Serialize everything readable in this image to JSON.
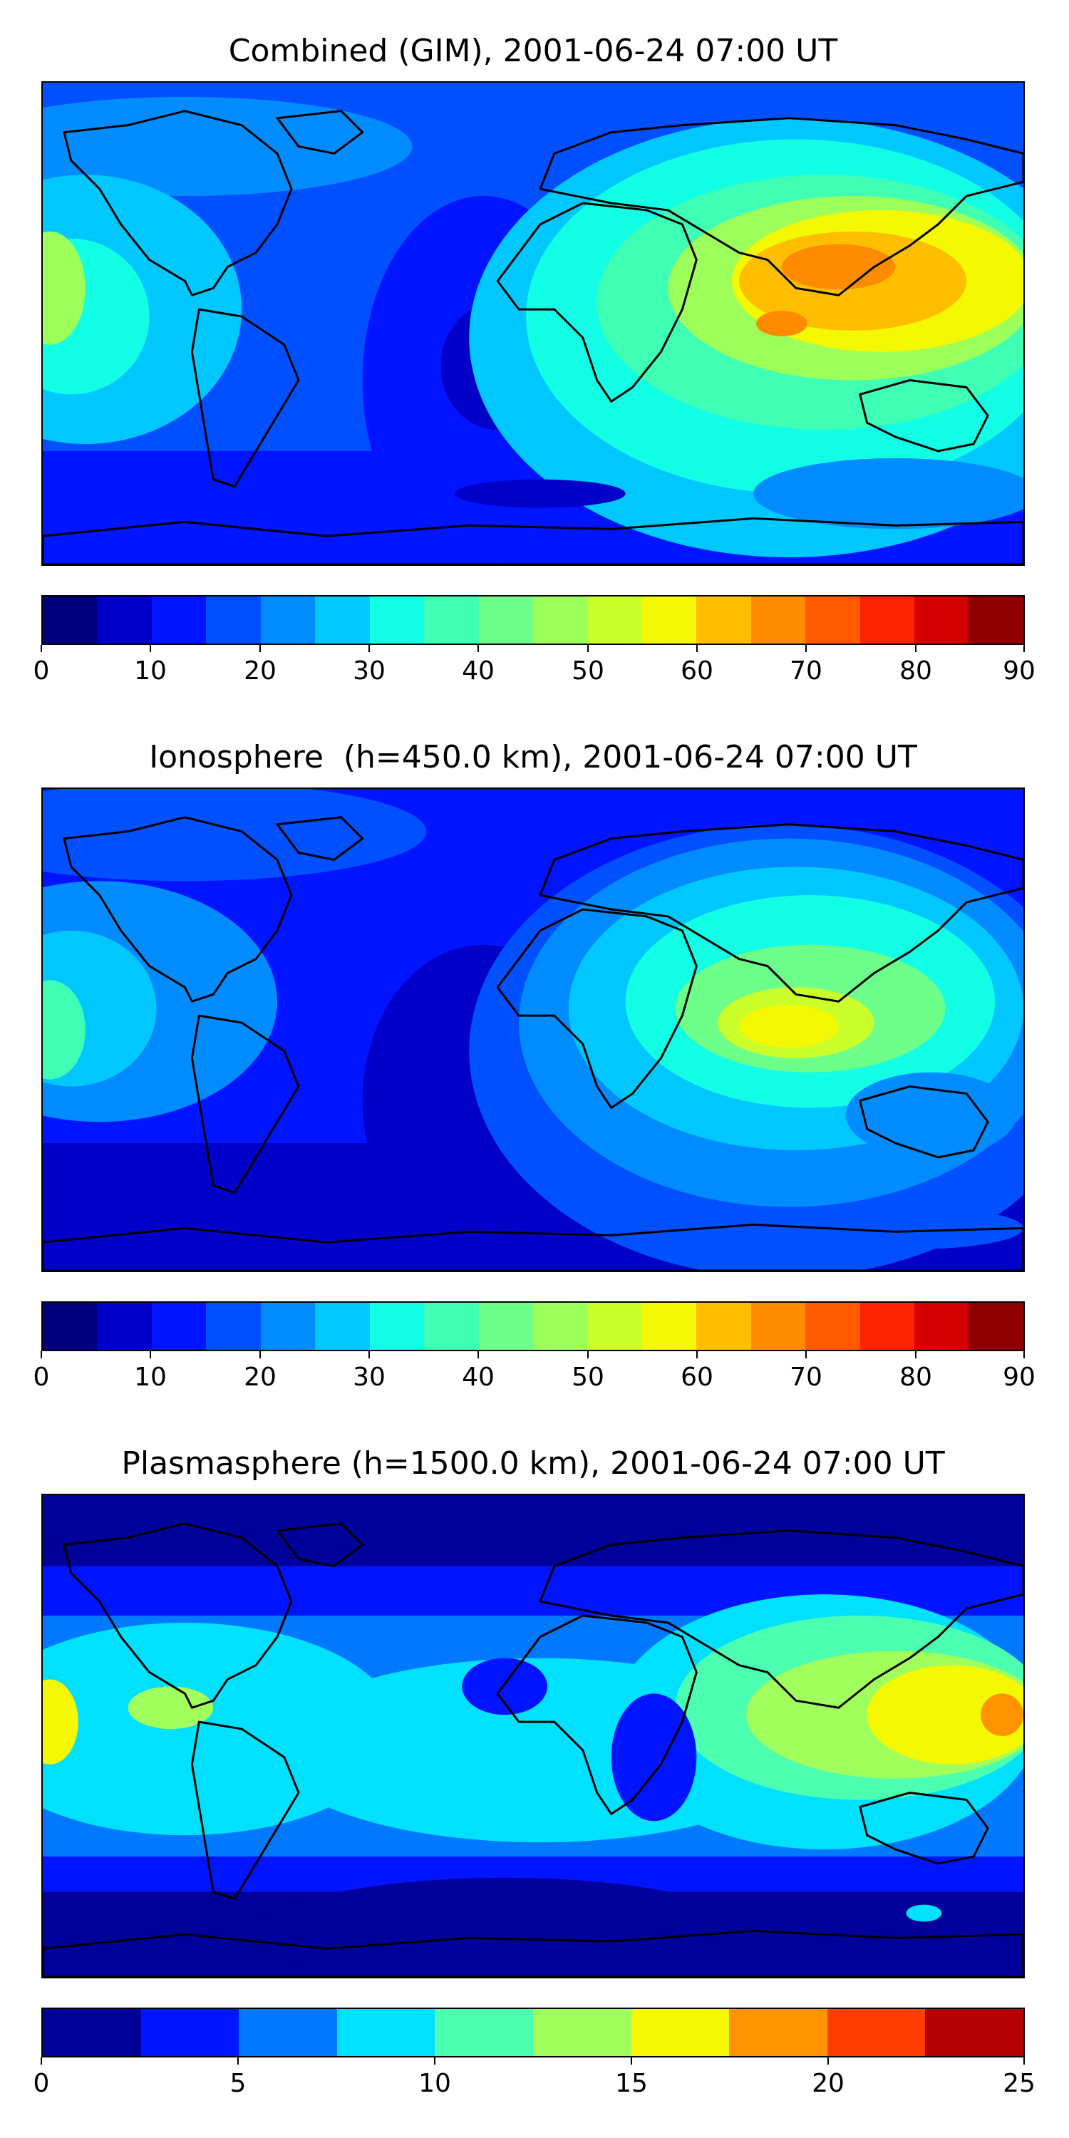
{
  "panels": [
    {
      "title": "Combined (GIM), 2001-06-24 07:00 UT",
      "colorbar": {
        "min": 0,
        "max": 90,
        "step": 5,
        "ticks": [
          "0",
          "10",
          "20",
          "30",
          "40",
          "50",
          "60",
          "70",
          "80",
          "90"
        ],
        "colors": [
          "#00007f",
          "#0000c8",
          "#0014ff",
          "#0050ff",
          "#008cff",
          "#00c8ff",
          "#12ffe5",
          "#3fffb5",
          "#6dff8a",
          "#9cff5a",
          "#caff2c",
          "#f4f802",
          "#ffbe00",
          "#ff8c00",
          "#ff5a00",
          "#ff2400",
          "#d40000",
          "#8e0000"
        ]
      },
      "summary": {
        "day_side_max_region": "south-east asia / indian ocean",
        "peak_band": "65-70"
      }
    },
    {
      "title": "Ionosphere  (h=450.0 km), 2001-06-24 07:00 UT",
      "colorbar": {
        "min": 0,
        "max": 90,
        "step": 5,
        "ticks": [
          "0",
          "10",
          "20",
          "30",
          "40",
          "50",
          "60",
          "70",
          "80",
          "90"
        ],
        "colors": [
          "#00007f",
          "#0000c8",
          "#0014ff",
          "#0050ff",
          "#008cff",
          "#00c8ff",
          "#12ffe5",
          "#3fffb5",
          "#6dff8a",
          "#9cff5a",
          "#caff2c",
          "#f4f802",
          "#ffbe00",
          "#ff8c00",
          "#ff5a00",
          "#ff2400",
          "#d40000",
          "#8e0000"
        ]
      },
      "summary": {
        "day_side_max_region": "indian ocean",
        "peak_band": "55-60"
      }
    },
    {
      "title": "Plasmasphere (h=1500.0 km), 2001-06-24 07:00 UT",
      "colorbar": {
        "min": 0,
        "max": 25,
        "step": 2.5,
        "ticks": [
          "0",
          "5",
          "10",
          "15",
          "20",
          "25"
        ],
        "colors": [
          "#00009a",
          "#0014ff",
          "#0078ff",
          "#00e0ff",
          "#4cffb0",
          "#a0ff5c",
          "#f4f802",
          "#ff9400",
          "#ff3c00",
          "#b40000"
        ]
      },
      "summary": {
        "day_side_max_region": "western pacific",
        "peak_band": "17.5-20"
      }
    }
  ]
}
